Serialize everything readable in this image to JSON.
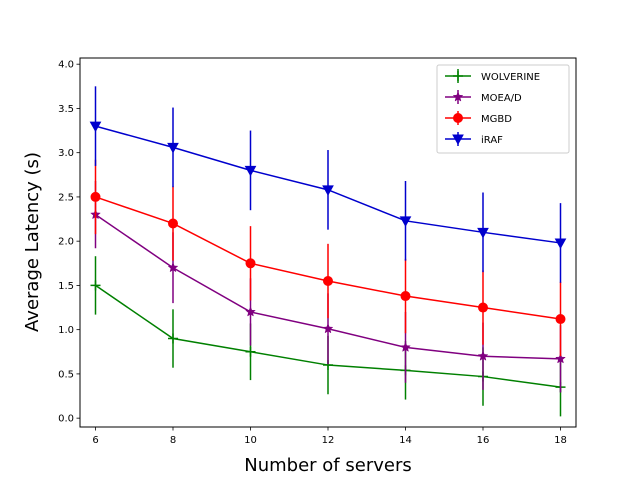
{
  "chart_data": {
    "type": "line",
    "title": "",
    "xlabel": "Number of servers",
    "ylabel": "Average Latency (s)",
    "xlim": [
      5.6,
      18.4
    ],
    "ylim": [
      -0.1,
      4.07
    ],
    "x_ticks": [
      6,
      8,
      10,
      12,
      14,
      16,
      18
    ],
    "y_ticks": [
      0.0,
      0.5,
      1.0,
      1.5,
      2.0,
      2.5,
      3.0,
      3.5,
      4.0
    ],
    "grid": false,
    "legend_position": "top-right",
    "x": [
      6,
      8,
      10,
      12,
      14,
      16,
      18
    ],
    "series": [
      {
        "name": "WOLVERINE",
        "color": "#008000",
        "marker": "plus",
        "values": [
          1.5,
          0.9,
          0.75,
          0.6,
          0.54,
          0.47,
          0.35
        ],
        "error": [
          0.33,
          0.33,
          0.32,
          0.33,
          0.33,
          0.33,
          0.33
        ]
      },
      {
        "name": "MOEA/D",
        "color": "#800080",
        "marker": "star",
        "values": [
          2.3,
          1.7,
          1.2,
          1.01,
          0.8,
          0.7,
          0.67
        ],
        "error": [
          0.38,
          0.4,
          0.38,
          0.4,
          0.4,
          0.38,
          0.38
        ]
      },
      {
        "name": "MGBD",
        "color": "#ff0000",
        "marker": "circle",
        "values": [
          2.5,
          2.2,
          1.75,
          1.55,
          1.38,
          1.25,
          1.12
        ],
        "error": [
          0.42,
          0.42,
          0.42,
          0.42,
          0.42,
          0.42,
          0.42
        ]
      },
      {
        "name": "iRAF",
        "color": "#0000cd",
        "marker": "triangle-down",
        "values": [
          3.3,
          3.06,
          2.8,
          2.58,
          2.23,
          2.1,
          1.98
        ],
        "error": [
          0.45,
          0.45,
          0.45,
          0.45,
          0.45,
          0.45,
          0.45
        ]
      }
    ]
  }
}
